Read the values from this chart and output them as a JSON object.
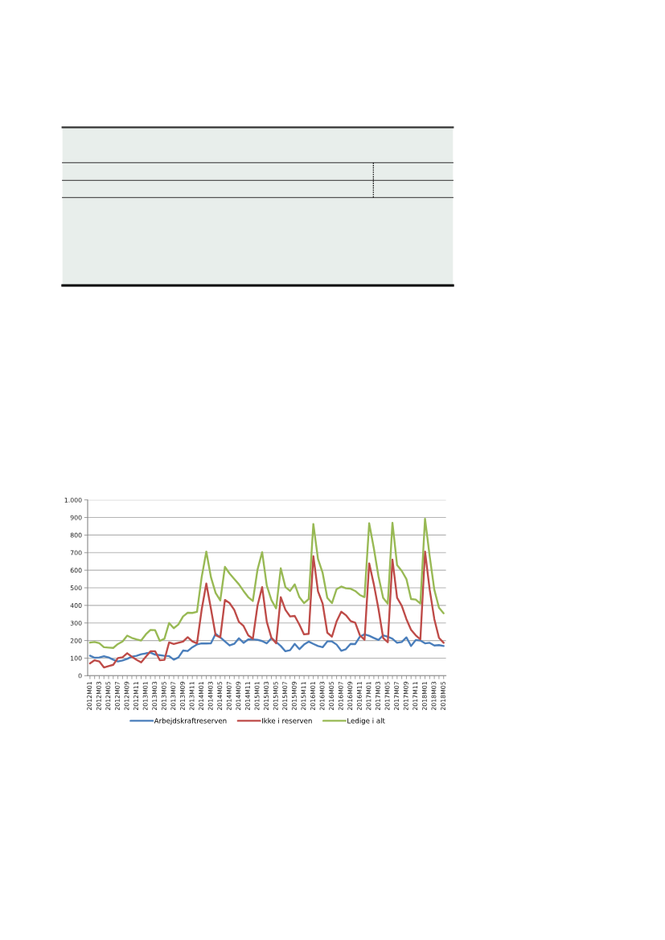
{
  "chart_data": {
    "type": "line",
    "categories": [
      "2012M01",
      null,
      "2012M03",
      null,
      "2012M05",
      null,
      "2012M07",
      null,
      "2012M09",
      null,
      "2012M11",
      null,
      "2013M01",
      null,
      "2013M03",
      null,
      "2013M05",
      null,
      "2013M07",
      null,
      "2013M09",
      null,
      "2013M11",
      null,
      "2014M01",
      null,
      "2014M03",
      null,
      "2014M05",
      null,
      "2014M07",
      null,
      "2014M09",
      null,
      "2014M11",
      null,
      "2015M01",
      null,
      "2015M03",
      null,
      "2015M05",
      null,
      "2015M07",
      null,
      "2015M09",
      null,
      "2015M11",
      null,
      "2016M01",
      null,
      "2016M03",
      null,
      "2016M05",
      null,
      "2016M07",
      null,
      "2016M09",
      null,
      "2016M11",
      null,
      "2017M01",
      null,
      "2017M03",
      null,
      "2017M05",
      null,
      "2017M07",
      null,
      "2017M09",
      null,
      "2017M11",
      null,
      "2018M01",
      null,
      "2018M03",
      null,
      "2018M05"
    ],
    "series": [
      {
        "name": "Arbejdskraftreserven",
        "color": "#4a7ebb",
        "values": [
          114,
          102,
          104,
          111,
          104,
          91,
          81,
          87,
          96,
          108,
          113,
          122,
          127,
          131,
          120,
          117,
          113,
          112,
          91,
          104,
          143,
          140,
          162,
          178,
          184,
          183,
          184,
          238,
          218,
          195,
          172,
          181,
          213,
          187,
          206,
          207,
          204,
          197,
          184,
          213,
          192,
          169,
          139,
          145,
          181,
          151,
          177,
          194,
          181,
          169,
          162,
          195,
          195,
          177,
          142,
          151,
          181,
          180,
          222,
          235,
          227,
          215,
          203,
          230,
          222,
          210,
          187,
          192,
          218,
          169,
          203,
          200,
          184,
          187,
          172,
          174,
          169
        ]
      },
      {
        "name": "Ikke i reserven",
        "color": "#be4b48",
        "values": [
          70,
          88,
          81,
          47,
          55,
          62,
          100,
          105,
          128,
          108,
          91,
          76,
          108,
          139,
          139,
          88,
          90,
          189,
          180,
          187,
          194,
          219,
          195,
          184,
          375,
          524,
          380,
          230,
          218,
          431,
          413,
          375,
          306,
          283,
          230,
          210,
          398,
          504,
          306,
          215,
          184,
          447,
          375,
          337,
          340,
          291,
          235,
          238,
          680,
          480,
          410,
          245,
          222,
          309,
          364,
          344,
          311,
          302,
          230,
          204,
          639,
          520,
          380,
          215,
          190,
          660,
          443,
          398,
          322,
          261,
          230,
          207,
          706,
          490,
          322,
          215,
          187
        ]
      },
      {
        "name": "Ledige i alt",
        "color": "#98b954",
        "values": [
          188,
          192,
          185,
          162,
          160,
          158,
          180,
          195,
          228,
          215,
          207,
          200,
          235,
          260,
          259,
          198,
          210,
          300,
          270,
          291,
          337,
          358,
          357,
          363,
          560,
          706,
          560,
          471,
          428,
          619,
          581,
          550,
          520,
          482,
          447,
          425,
          603,
          703,
          512,
          430,
          383,
          611,
          504,
          482,
          520,
          447,
          413,
          436,
          863,
          664,
          585,
          443,
          413,
          492,
          507,
          497,
          495,
          482,
          459,
          447,
          867,
          725,
          565,
          443,
          410,
          870,
          629,
          596,
          550,
          436,
          433,
          410,
          893,
          680,
          489,
          387,
          355
        ]
      }
    ],
    "ylim": [
      0,
      1000
    ],
    "yticks": [
      0,
      100,
      200,
      300,
      400,
      500,
      600,
      700,
      800,
      900,
      {
        "value": 1000,
        "label": "1.000"
      }
    ],
    "grid": "y",
    "legend": "bottom",
    "marker": "none",
    "line_style": "solid"
  }
}
